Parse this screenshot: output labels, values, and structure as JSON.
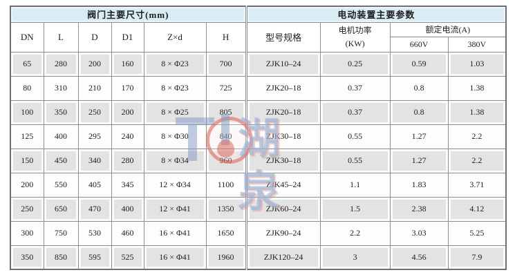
{
  "table": {
    "left_header": "阀门主要尺寸(mm)",
    "right_header": "电动装置主要参数",
    "dim_columns": [
      "DN",
      "L",
      "D",
      "D1",
      "Z×d",
      "H"
    ],
    "model_column": "型号规格",
    "power_line1": "电机功率",
    "power_line2": "(KW)",
    "current_header": "额定电流(A)",
    "voltages": [
      "660V",
      "380V"
    ],
    "rows": [
      {
        "dn": "65",
        "l": "280",
        "d": "200",
        "d1": "160",
        "zd": "8 × Φ23",
        "h": "700",
        "model": "ZJK10–24",
        "power": "0.25",
        "a660": "0.59",
        "a380": "1.03"
      },
      {
        "dn": "80",
        "l": "310",
        "d": "210",
        "d1": "170",
        "zd": "8 × Φ23",
        "h": "725",
        "model": "ZJK20–18",
        "power": "0.37",
        "a660": "0.8",
        "a380": "1.38"
      },
      {
        "dn": "100",
        "l": "350",
        "d": "250",
        "d1": "200",
        "zd": "8 × Φ25",
        "h": "805",
        "model": "ZJK20–18",
        "power": "0.37",
        "a660": "0.8",
        "a380": "1.38"
      },
      {
        "dn": "125",
        "l": "400",
        "d": "295",
        "d1": "240",
        "zd": "8 × Φ30",
        "h": "840",
        "model": "ZJK30–18",
        "power": "0.55",
        "a660": "1.27",
        "a380": "2.2"
      },
      {
        "dn": "150",
        "l": "450",
        "d": "340",
        "d1": "280",
        "zd": "8 × Φ34",
        "h": "960",
        "model": "ZJK30–18",
        "power": "0.55",
        "a660": "1.27",
        "a380": "2.2"
      },
      {
        "dn": "200",
        "l": "550",
        "d": "405",
        "d1": "345",
        "zd": "12 × Φ34",
        "h": "1100",
        "model": "ZJK45–24",
        "power": "1.1",
        "a660": "1.83",
        "a380": "3.71"
      },
      {
        "dn": "250",
        "l": "650",
        "d": "470",
        "d1": "400",
        "zd": "12 × Φ41",
        "h": "1350",
        "model": "ZJK60–24",
        "power": "1.5",
        "a660": "2.38",
        "a380": "4.12"
      },
      {
        "dn": "300",
        "l": "750",
        "d": "530",
        "d1": "460",
        "zd": "16 × Φ41",
        "h": "1650",
        "model": "ZJK90–24",
        "power": "2.2",
        "a660": "3.03",
        "a380": "5.25"
      },
      {
        "dn": "350",
        "l": "850",
        "d": "595",
        "d1": "525",
        "zd": "16 × Φ41",
        "h": "1960",
        "model": "ZJK120–24",
        "power": "3",
        "a660": "4.56",
        "a380": "7.9"
      }
    ]
  },
  "watermark": {
    "text": "湖泉"
  },
  "colors": {
    "section_header_bg": "#d8edf6",
    "stripe_row_bg": "#e3e3e3",
    "grid_border": "#8d8d8d",
    "outer_border": "#6f6f6f",
    "watermark_blue": "#8098c2",
    "watermark_red": "#d65c50"
  }
}
